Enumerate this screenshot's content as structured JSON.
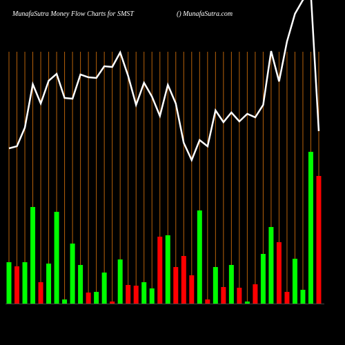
{
  "chart_data": {
    "type": "bar",
    "title": "MunafaSutra  Money Flow  Charts for SMST",
    "subtitle": "() MunafaSutra.com",
    "categories": [
      null,
      null,
      null,
      null,
      null,
      null,
      null,
      null,
      null,
      null,
      null,
      null,
      null,
      null,
      null,
      null,
      null,
      null,
      null,
      null,
      null,
      null,
      null,
      null,
      null,
      null,
      null,
      null,
      null,
      null,
      null,
      null,
      null,
      null,
      null,
      null,
      null,
      null,
      null,
      null
    ],
    "values": [
      60,
      54,
      60,
      140,
      31,
      58,
      133,
      6,
      87,
      56,
      16,
      17,
      45,
      3,
      64,
      27,
      26,
      31,
      22,
      97,
      99,
      53,
      69,
      41,
      135,
      6,
      53,
      24,
      56,
      23,
      3,
      28,
      72,
      111,
      89,
      17,
      65,
      20,
      220,
      185
    ],
    "colors": [
      "#00ff00",
      "#ff0000",
      "#00ff00",
      "#00ff00",
      "#ff0000",
      "#00ff00",
      "#00ff00",
      "#00ff00",
      "#00ff00",
      "#00ff00",
      "#ff0000",
      "#00ff00",
      "#00ff00",
      "#ff0000",
      "#00ff00",
      "#ff0000",
      "#ff0000",
      "#00ff00",
      "#00ff00",
      "#ff0000",
      "#00ff00",
      "#ff0000",
      "#ff0000",
      "#ff0000",
      "#00ff00",
      "#ff0000",
      "#00ff00",
      "#ff0000",
      "#00ff00",
      "#ff0000",
      "#00ff00",
      "#ff0000",
      "#00ff00",
      "#00ff00",
      "#ff0000",
      "#ff0000",
      "#00ff00",
      "#00ff00",
      "#00ff00",
      "#ff0000"
    ],
    "line": {
      "color": "#ffffff",
      "values": [
        285,
        288,
        315,
        378,
        350,
        383,
        393,
        358,
        357,
        392,
        388,
        387,
        404,
        403,
        424,
        390,
        348,
        380,
        360,
        332,
        377,
        350,
        293,
        268,
        297,
        288,
        340,
        323,
        337,
        324,
        335,
        330,
        348,
        426,
        382,
        440,
        480,
        500,
        510,
        310
      ]
    },
    "grid_color": "#b8620a"
  }
}
